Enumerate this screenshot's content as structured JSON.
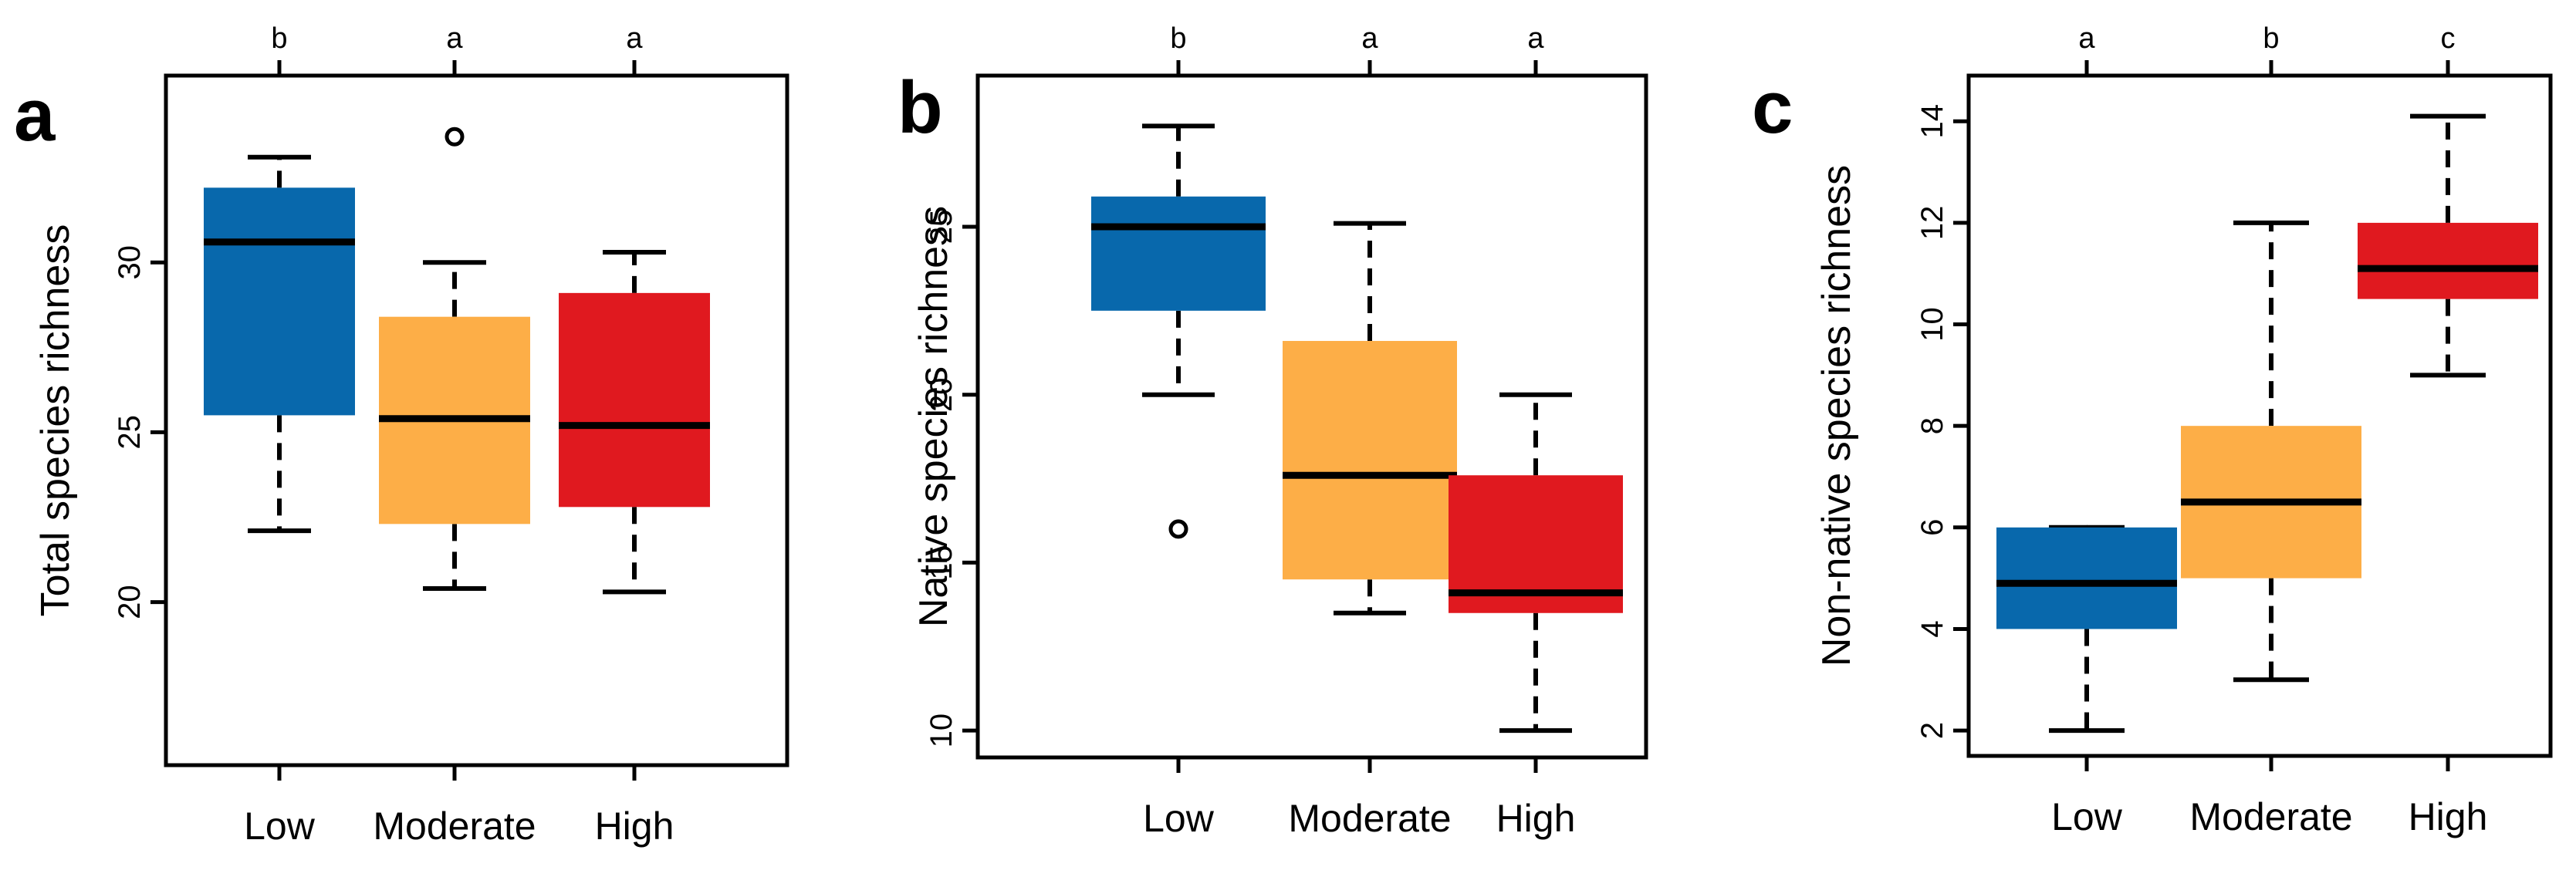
{
  "colors": {
    "low": "#0868ac",
    "moderate": "#fdae47",
    "high": "#e0191f",
    "axis": "#000000"
  },
  "chart_data": [
    {
      "type": "boxplot",
      "panel_label": "a",
      "title": "",
      "xlabel": "",
      "ylabel": "Total species richness",
      "categories": [
        "Low",
        "Moderate",
        "High"
      ],
      "ylim": [
        15.2,
        35.5
      ],
      "yticks": [
        20,
        25,
        30
      ],
      "significance_letters": [
        "b",
        "a",
        "a"
      ],
      "boxes": [
        {
          "category": "Low",
          "whisker_low": 22.1,
          "q1": 25.5,
          "median": 30.6,
          "q3": 32.2,
          "whisker_high": 33.1,
          "outliers": []
        },
        {
          "category": "Moderate",
          "whisker_low": 20.4,
          "q1": 22.3,
          "median": 25.4,
          "q3": 28.4,
          "whisker_high": 30.0,
          "outliers": [
            33.7
          ]
        },
        {
          "category": "High",
          "whisker_low": 20.3,
          "q1": 22.8,
          "median": 25.2,
          "q3": 29.1,
          "whisker_high": 30.3,
          "outliers": []
        }
      ]
    },
    {
      "type": "boxplot",
      "panel_label": "b",
      "title": "",
      "xlabel": "",
      "ylabel": "Native species richness",
      "categories": [
        "Low",
        "Moderate",
        "High"
      ],
      "ylim": [
        9.2,
        29.5
      ],
      "yticks": [
        10,
        15,
        20,
        25
      ],
      "significance_letters": [
        "b",
        "a",
        "a"
      ],
      "boxes": [
        {
          "category": "Low",
          "whisker_low": 20.0,
          "q1": 22.5,
          "median": 25.0,
          "q3": 25.9,
          "whisker_high": 28.0,
          "outliers": [
            16.0
          ]
        },
        {
          "category": "Moderate",
          "whisker_low": 13.5,
          "q1": 14.5,
          "median": 17.6,
          "q3": 21.6,
          "whisker_high": 25.1,
          "outliers": []
        },
        {
          "category": "High",
          "whisker_low": 10.0,
          "q1": 13.5,
          "median": 14.1,
          "q3": 17.6,
          "whisker_high": 20.0,
          "outliers": []
        }
      ]
    },
    {
      "type": "boxplot",
      "panel_label": "c",
      "title": "",
      "xlabel": "",
      "ylabel": "Non-native species richness",
      "categories": [
        "Low",
        "Moderate",
        "High"
      ],
      "ylim": [
        1.5,
        14.9
      ],
      "yticks": [
        2,
        4,
        6,
        8,
        10,
        12,
        14
      ],
      "significance_letters": [
        "a",
        "b",
        "c"
      ],
      "boxes": [
        {
          "category": "Low",
          "whisker_low": 2.0,
          "q1": 4.0,
          "median": 4.9,
          "q3": 6.0,
          "whisker_high": 6.0,
          "outliers": []
        },
        {
          "category": "Moderate",
          "whisker_low": 3.0,
          "q1": 5.0,
          "median": 6.5,
          "q3": 8.0,
          "whisker_high": 12.0,
          "outliers": []
        },
        {
          "category": "High",
          "whisker_low": 9.0,
          "q1": 10.5,
          "median": 11.1,
          "q3": 12.0,
          "whisker_high": 14.1,
          "outliers": []
        }
      ]
    }
  ]
}
